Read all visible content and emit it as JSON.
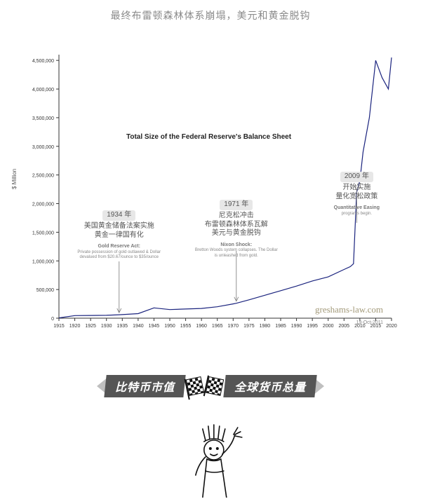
{
  "subtitle": "最终布雷顿森林体系崩塌，美元和黄金脱钩",
  "chart": {
    "type": "line",
    "title": "Total Size of the Federal Reserve's Balance Sheet",
    "ylabel": "$ Million",
    "ylim": [
      0,
      4600000
    ],
    "ytick_step": 500000,
    "yticks": [
      "0",
      "500,000",
      "1,000,000",
      "1,500,000",
      "2,000,000",
      "2,500,000",
      "3,000,000",
      "3,500,000",
      "4,000,000",
      "4,500,000"
    ],
    "xlim": [
      1915,
      2020
    ],
    "xtick_step": 5,
    "xticks": [
      "1915",
      "1920",
      "1925",
      "1930",
      "1935",
      "1940",
      "1945",
      "1950",
      "1955",
      "1960",
      "1965",
      "1970",
      "1975",
      "1980",
      "1985",
      "1990",
      "1995",
      "2000",
      "2005",
      "2010",
      "2015",
      "2020"
    ],
    "line_color": "#1a237e",
    "line_width": 1.2,
    "axis_color": "#333333",
    "tick_color": "#333333",
    "tick_fontsize": 7,
    "background_color": "#ffffff",
    "watermark": "greshams-law.com",
    "date_stamp": "19-Oct-2011",
    "series": [
      [
        1915,
        5000
      ],
      [
        1920,
        45000
      ],
      [
        1925,
        48000
      ],
      [
        1930,
        50000
      ],
      [
        1934,
        60000
      ],
      [
        1940,
        80000
      ],
      [
        1945,
        180000
      ],
      [
        1950,
        150000
      ],
      [
        1955,
        160000
      ],
      [
        1960,
        170000
      ],
      [
        1965,
        200000
      ],
      [
        1970,
        250000
      ],
      [
        1971,
        260000
      ],
      [
        1975,
        320000
      ],
      [
        1980,
        400000
      ],
      [
        1985,
        480000
      ],
      [
        1990,
        560000
      ],
      [
        1995,
        650000
      ],
      [
        2000,
        720000
      ],
      [
        2005,
        850000
      ],
      [
        2007,
        900000
      ],
      [
        2008,
        950000
      ],
      [
        2009,
        2200000
      ],
      [
        2010,
        2400000
      ],
      [
        2011,
        2900000
      ],
      [
        2013,
        3500000
      ],
      [
        2015,
        4500000
      ],
      [
        2017,
        4200000
      ],
      [
        2019,
        4000000
      ],
      [
        2020,
        4550000
      ]
    ]
  },
  "annotations": [
    {
      "id": "a1934",
      "x_year": 1934,
      "cn_head": "1934 年",
      "cn_body": "美国黄金储备法案实施\n黄金一律国有化",
      "en": "Gold Reserve Act:",
      "en_sub": "Private possession of gold outlawed & Dollar devalued from $20.67/ounce to $35/ounce"
    },
    {
      "id": "a1971",
      "x_year": 1971,
      "cn_head": "1971 年",
      "cn_body": "尼克松冲击\n布雷顿森林体系瓦解\n美元与黄金脱钩",
      "en": "Nixon Shock:",
      "en_sub": "Bretton Woods system collapses. The Dollar is unleashed from gold."
    },
    {
      "id": "a2009",
      "x_year": 2009,
      "cn_head": "2009 年",
      "cn_body": "开始实施\n量化宽松政策",
      "en": "Quantitative Easing",
      "en_sub": "programs begin."
    }
  ],
  "banner": {
    "left_text": "比特币市值",
    "right_text": "全球货币总量",
    "bg_color": "#555555",
    "text_color": "#ffffff",
    "side_color": "#bfbfbf"
  }
}
